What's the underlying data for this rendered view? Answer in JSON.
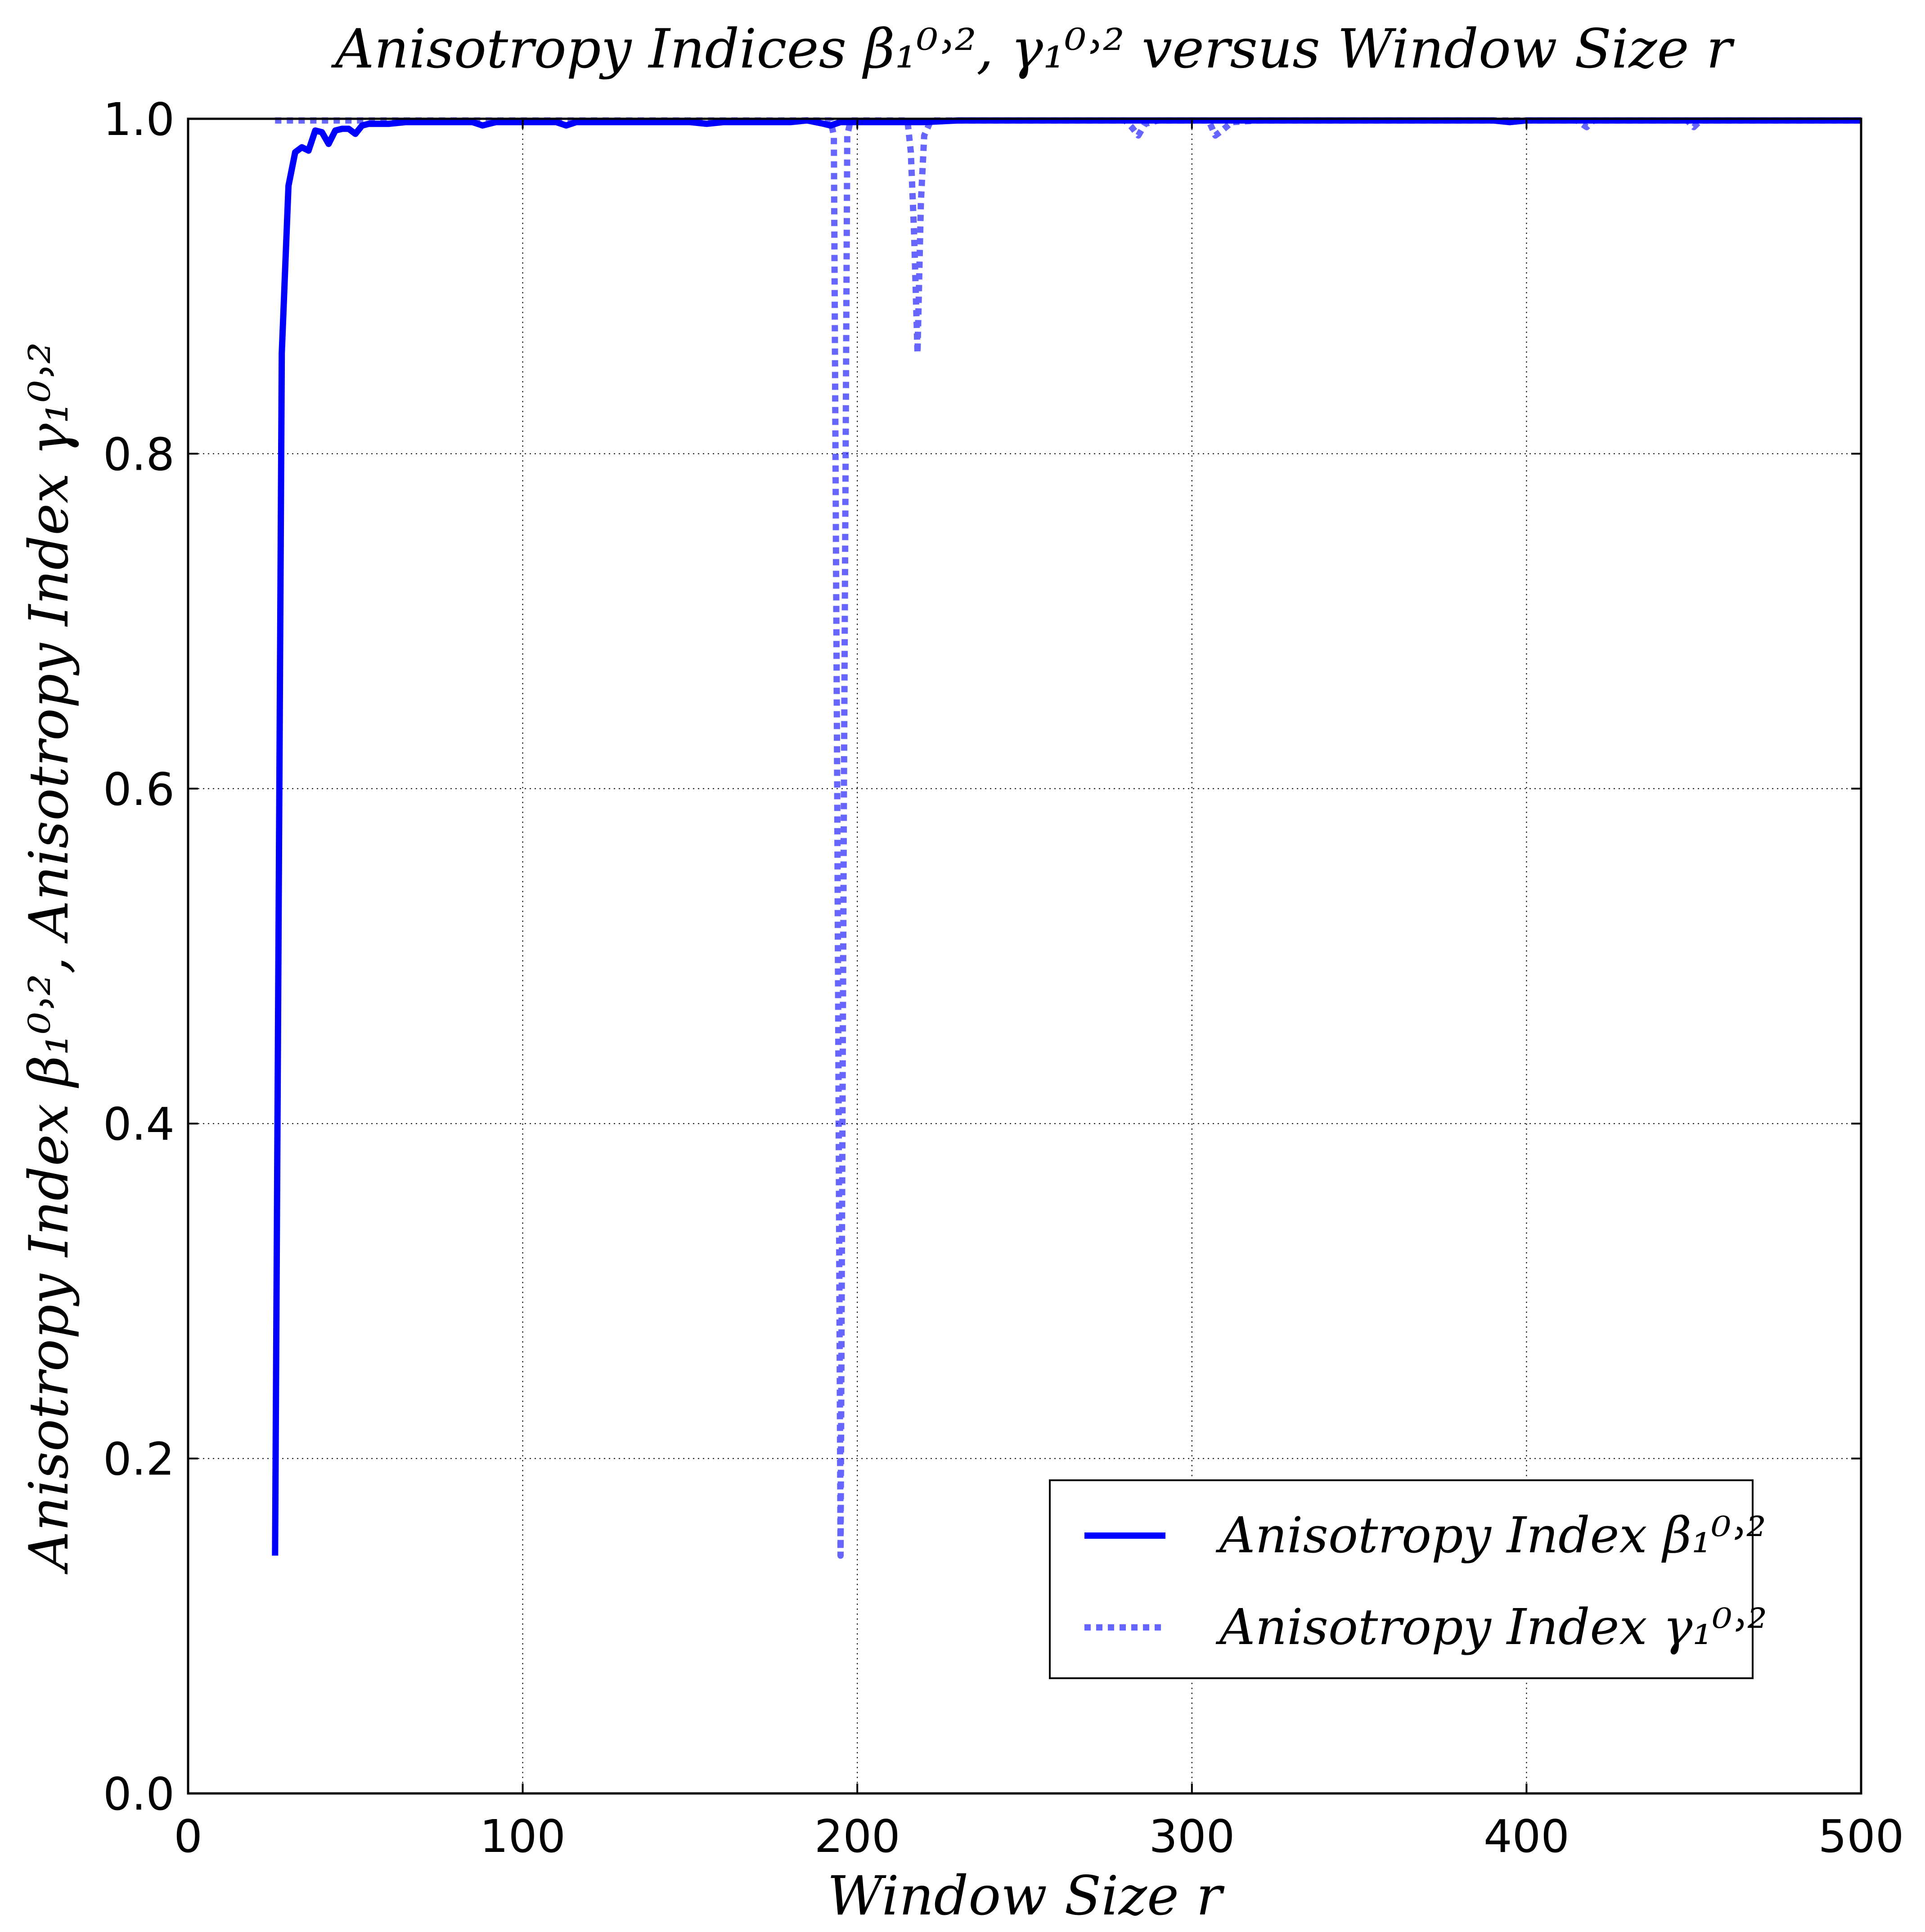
{
  "chart_data": {
    "type": "line",
    "title": "Anisotropy Indices β₁⁰˒², γ₁⁰˒² versus Window Size r",
    "xlabel": "Window Size r",
    "ylabel": "Anisotropy Index β₁⁰˒², Anisotropy Index γ₁⁰˒²",
    "xlim": [
      0,
      500
    ],
    "ylim": [
      0.0,
      1.0
    ],
    "xticks": [
      0,
      100,
      200,
      300,
      400,
      500
    ],
    "yticks": [
      0.0,
      0.2,
      0.4,
      0.6,
      0.8,
      1.0
    ],
    "xtick_labels": [
      "0",
      "100",
      "200",
      "300",
      "400",
      "500"
    ],
    "ytick_labels": [
      "0.0",
      "0.2",
      "0.4",
      "0.6",
      "0.8",
      "1.0"
    ],
    "grid": true,
    "legend_position": "lower-right",
    "series": [
      {
        "name": "Anisotropy Index β₁⁰˒²",
        "color": "#0000ff",
        "style": "solid",
        "x": [
          26,
          28,
          30,
          32,
          34,
          36,
          38,
          40,
          42,
          44,
          46,
          48,
          50,
          52,
          54,
          56,
          60,
          65,
          70,
          75,
          80,
          85,
          88,
          92,
          100,
          110,
          113,
          116,
          120,
          130,
          140,
          150,
          155,
          160,
          170,
          180,
          185,
          190,
          192,
          195,
          200,
          210,
          220,
          230,
          240,
          250,
          260,
          280,
          300,
          320,
          340,
          360,
          380,
          390,
          395,
          400,
          420,
          440,
          460,
          480,
          500
        ],
        "y": [
          0.142,
          0.86,
          0.96,
          0.98,
          0.983,
          0.981,
          0.993,
          0.992,
          0.985,
          0.993,
          0.994,
          0.994,
          0.991,
          0.996,
          0.997,
          0.997,
          0.997,
          0.998,
          0.998,
          0.998,
          0.998,
          0.998,
          0.996,
          0.998,
          0.998,
          0.998,
          0.996,
          0.998,
          0.998,
          0.998,
          0.998,
          0.998,
          0.997,
          0.998,
          0.998,
          0.998,
          0.999,
          0.997,
          0.996,
          0.998,
          0.998,
          0.998,
          0.998,
          0.999,
          0.999,
          0.999,
          0.999,
          0.999,
          0.999,
          0.999,
          0.999,
          0.999,
          0.999,
          0.999,
          0.998,
          0.999,
          0.999,
          0.999,
          0.999,
          0.999,
          0.999
        ]
      },
      {
        "name": "Anisotropy Index γ₁⁰˒²",
        "color": "#0000ff",
        "opacity": 0.6,
        "style": "dotted",
        "x": [
          26,
          40,
          50,
          60,
          100,
          150,
          180,
          192,
          193,
          194,
          195,
          196,
          197,
          198,
          199,
          200,
          210,
          215,
          216,
          217,
          218,
          219,
          220,
          222,
          230,
          250,
          280,
          282,
          284,
          286,
          290,
          300,
          305,
          307,
          309,
          312,
          320,
          350,
          400,
          415,
          418,
          420,
          430,
          448,
          450,
          452,
          460,
          500
        ],
        "y": [
          0.999,
          0.999,
          0.999,
          0.999,
          0.999,
          0.999,
          0.999,
          0.999,
          0.99,
          0.6,
          0.142,
          0.6,
          0.99,
          0.999,
          0.999,
          0.999,
          0.999,
          0.999,
          0.98,
          0.93,
          0.86,
          0.95,
          0.99,
          0.999,
          0.999,
          0.999,
          0.999,
          0.995,
          0.99,
          0.997,
          0.999,
          0.999,
          0.999,
          0.99,
          0.993,
          0.998,
          0.999,
          0.999,
          0.999,
          0.999,
          0.995,
          0.999,
          0.999,
          0.999,
          0.995,
          0.999,
          0.999,
          0.999
        ]
      }
    ]
  }
}
